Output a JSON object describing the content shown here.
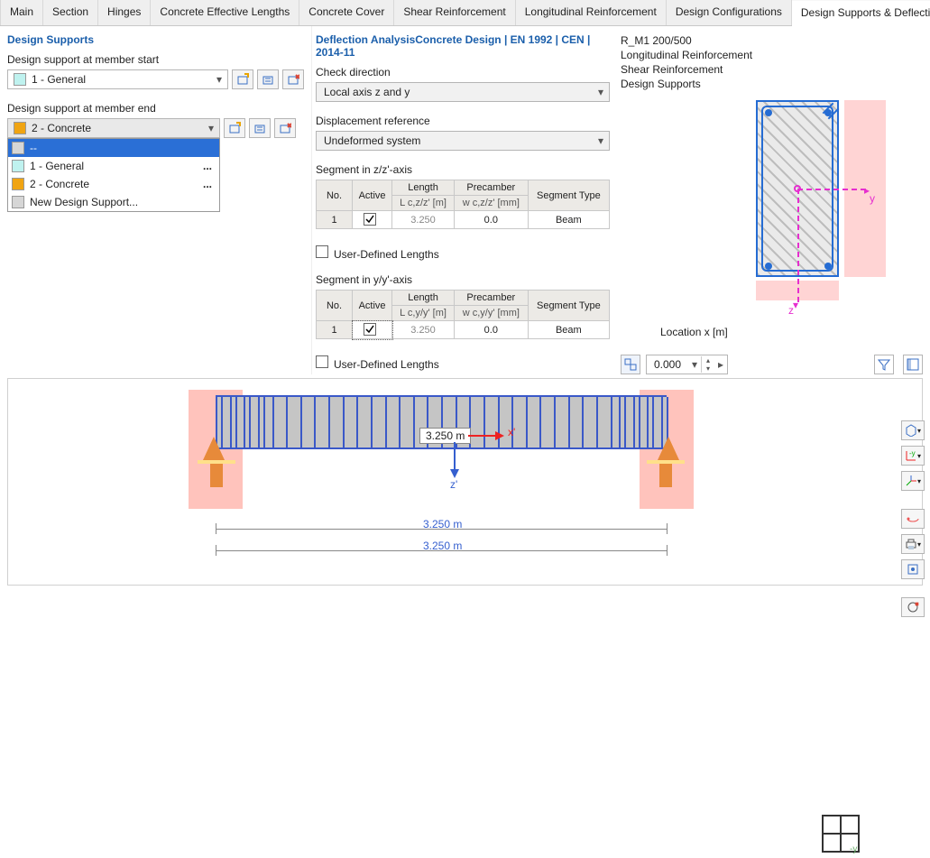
{
  "tabs": [
    "Main",
    "Section",
    "Hinges",
    "Concrete Effective Lengths",
    "Concrete Cover",
    "Shear Reinforcement",
    "Longitudinal Reinforcement",
    "Design Configurations",
    "Design Supports & Deflection"
  ],
  "active_tab": "Design Supports & Deflection",
  "left": {
    "title": "Design Supports",
    "start_label": "Design support at member start",
    "start_value": "1 - General",
    "start_swatch": "#bff2ef",
    "end_label": "Design support at member end",
    "end_value": "2 - Concrete",
    "end_swatch": "#f0a412",
    "dropdown_options": [
      {
        "label": "--",
        "swatch": "#d6d6d6",
        "selected": true,
        "more": false
      },
      {
        "label": "1 - General",
        "swatch": "#bff2ef",
        "selected": false,
        "more": true
      },
      {
        "label": "2 - Concrete",
        "swatch": "#f0a412",
        "selected": false,
        "more": true
      },
      {
        "label": "New Design Support...",
        "swatch": "#d6d6d6",
        "selected": false,
        "more": false
      }
    ]
  },
  "mid": {
    "title1": "Deflection Analysis",
    "title2": "Concrete Design | EN 1992 | CEN | 2014-11",
    "check_dir_label": "Check direction",
    "check_dir_value": "Local axis z and y",
    "disp_ref_label": "Displacement reference",
    "disp_ref_value": "Undeformed system",
    "seg_z_label": "Segment in z/z'-axis",
    "seg_y_label": "Segment in y/y'-axis",
    "headers": {
      "no": "No.",
      "active": "Active",
      "length": "Length",
      "precamber": "Precamber",
      "segtype": "Segment Type",
      "len_sub_z": "L c,z/z' [m]",
      "pre_sub_z": "w c,z/z' [mm]",
      "len_sub_y": "L c,y/y' [m]",
      "pre_sub_y": "w c,y/y' [mm]"
    },
    "row_z": {
      "no": "1",
      "active": true,
      "length": "3.250",
      "precamber": "0.0",
      "segtype": "Beam"
    },
    "row_y": {
      "no": "1",
      "active": true,
      "length": "3.250",
      "precamber": "0.0",
      "segtype": "Beam"
    },
    "udl_label": "User-Defined Lengths"
  },
  "right": {
    "info": [
      "R_M1 200/500",
      "Longitudinal Reinforcement",
      "Shear Reinforcement",
      "Design Supports"
    ],
    "axis_y": "y",
    "axis_z": "z",
    "location_label": "Location x [m]",
    "location_value": "0.000",
    "colors": {
      "pink": "#ffd4d4",
      "hatch_bg": "#eaeaea",
      "outline": "#256cd3",
      "magenta": "#e62ecf"
    }
  },
  "beam": {
    "length_label": "3.250 m",
    "dim_label": "3.250 m",
    "x_axis": "x'",
    "z_axis": "z'",
    "colors": {
      "support_pink": "#ffb8b0",
      "beam": "#c5c5c5",
      "stirrup": "#3a58c8",
      "support": "#e78a3a"
    }
  }
}
